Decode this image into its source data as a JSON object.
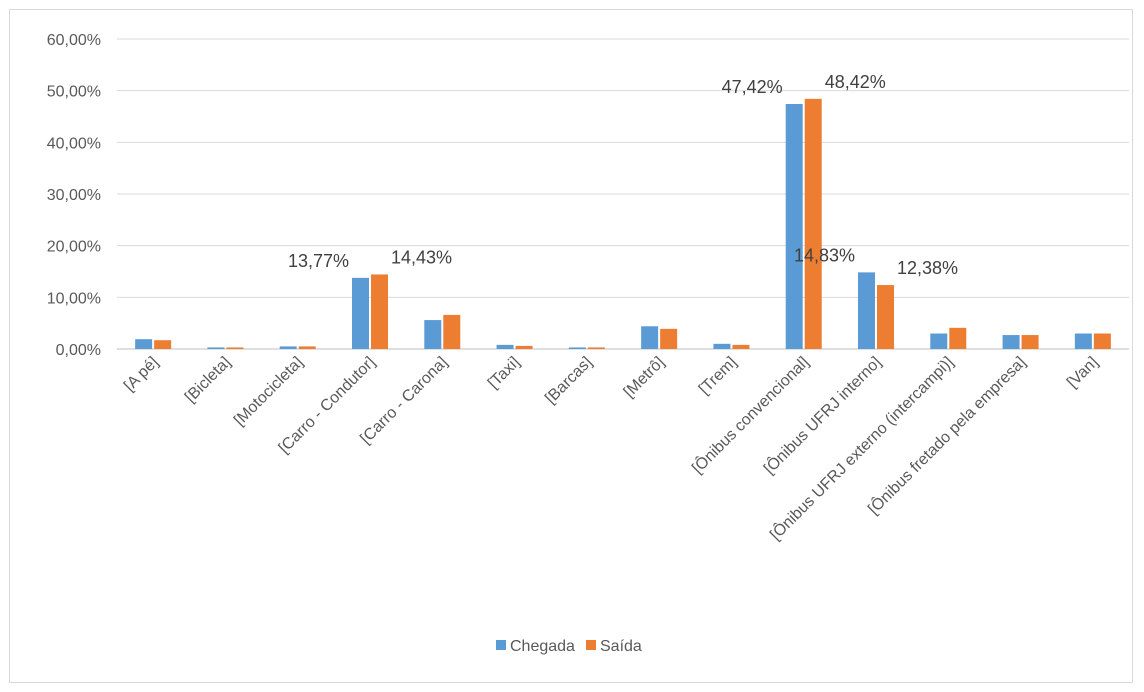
{
  "chart_data": {
    "type": "bar",
    "title": "",
    "xlabel": "",
    "ylabel": "",
    "ylim": [
      0,
      60
    ],
    "y_ticks": [
      "0,00%",
      "10,00%",
      "20,00%",
      "30,00%",
      "40,00%",
      "50,00%",
      "60,00%"
    ],
    "grid": true,
    "legend_position": "bottom",
    "categories": [
      "[A pé]",
      "[Bicleta]",
      "[Motocicleta]",
      "[Carro - Condutor]",
      "[Carro - Carona]",
      "[Taxi]",
      "[Barcas]",
      "[Metrô]",
      "[Trem]",
      "[Ônibus convencional]",
      "[Ônibus UFRJ interno]",
      "[Ônibus UFRJ externo (intercampi)]",
      "[Ônibus fretado pela empresa]",
      "[Van]"
    ],
    "series": [
      {
        "name": "Chegada",
        "color": "#5b9bd5",
        "values": [
          1.9,
          0.3,
          0.5,
          13.77,
          5.6,
          0.8,
          0.3,
          4.4,
          1.0,
          47.42,
          14.83,
          3.0,
          2.7,
          3.0
        ],
        "data_labels": [
          "",
          "",
          "",
          "13,77%",
          "",
          "",
          "",
          "",
          "",
          "47,42%",
          "14,83%",
          "",
          "",
          ""
        ]
      },
      {
        "name": "Saída",
        "color": "#ed7d31",
        "values": [
          1.7,
          0.3,
          0.5,
          14.43,
          6.6,
          0.6,
          0.3,
          3.9,
          0.8,
          48.42,
          12.38,
          4.1,
          2.7,
          3.0
        ],
        "data_labels": [
          "",
          "",
          "",
          "14,43%",
          "",
          "",
          "",
          "",
          "",
          "48,42%",
          "12,38%",
          "",
          "",
          ""
        ]
      }
    ]
  }
}
